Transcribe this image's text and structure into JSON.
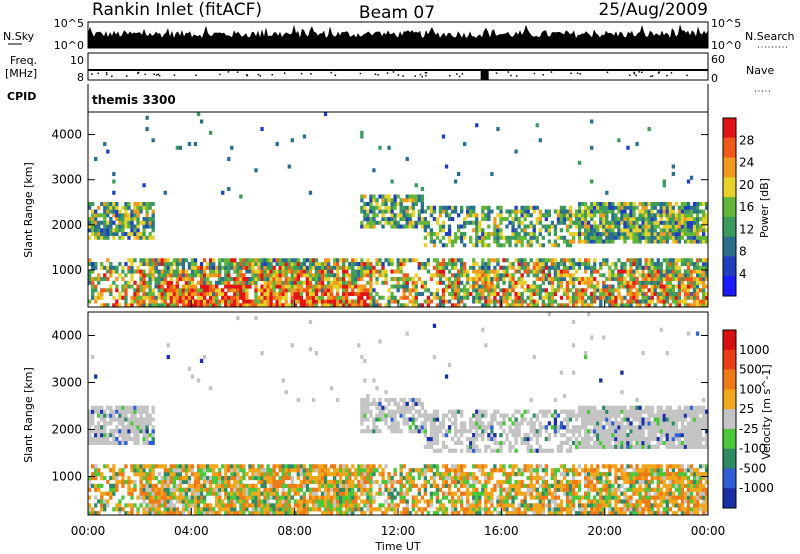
{
  "header": {
    "station": "Rankin Inlet (fitACF)",
    "beam": "Beam 07",
    "date": "25/Aug/2009"
  },
  "strips": {
    "nsky_label": "N.Sky",
    "nsky_ticks": [
      "10^5",
      "10^0"
    ],
    "nsearch_label": "N.Search",
    "nsearch_ticks": [
      "10^5",
      "10^0"
    ],
    "freq_label_1": "Freq.",
    "freq_label_2": "[MHz]",
    "freq_ticks": [
      "10",
      "8"
    ],
    "nave_label": "Nave",
    "nave_ticks": [
      "60",
      "0"
    ],
    "cpid_label": "CPID",
    "cpid_value": "themis 3300"
  },
  "colors": {
    "power_scale": [
      "#1a1aff",
      "#1f3fbf",
      "#2b6f8f",
      "#3c9a5c",
      "#63b63a",
      "#e6d22a",
      "#f09a1f",
      "#ef5a1a",
      "#e01414"
    ],
    "velocity_scale": [
      "#1a2fa6",
      "#2f5fd2",
      "#2e8a63",
      "#4cc73b",
      "#c4c4c4",
      "#f0a71c",
      "#ee7a17",
      "#ea3d17",
      "#d61010"
    ],
    "velocity_ground": "#c8c8c8"
  },
  "chart_data": [
    {
      "type": "heatmap",
      "parameter": "Power",
      "ylabel": "Slant Range [km]",
      "ylim": [
        180,
        4500
      ],
      "y_ticks": [
        1000,
        2000,
        3000,
        4000
      ],
      "xlim": [
        0,
        24
      ],
      "x_ticks": [
        "00:00",
        "04:00",
        "08:00",
        "12:00",
        "16:00",
        "20:00",
        "00:00"
      ],
      "colorbar_label": "Power [dB]",
      "colorbar_ticks": [
        "28",
        "24",
        "20",
        "16",
        "12",
        "8",
        "4"
      ]
    },
    {
      "type": "heatmap",
      "parameter": "Velocity",
      "ylabel": "Slant Range [km]",
      "ylim": [
        180,
        4500
      ],
      "y_ticks": [
        1000,
        2000,
        3000,
        4000
      ],
      "xlim": [
        0,
        24
      ],
      "x_ticks": [
        "00:00",
        "04:00",
        "08:00",
        "12:00",
        "16:00",
        "20:00",
        "00:00"
      ],
      "xlabel": "Time UT",
      "colorbar_label": "Velocity [m s^-1]",
      "colorbar_ticks": [
        "1000",
        "500",
        "100",
        "25",
        "-25",
        "-100",
        "-500",
        "-1000"
      ]
    }
  ]
}
